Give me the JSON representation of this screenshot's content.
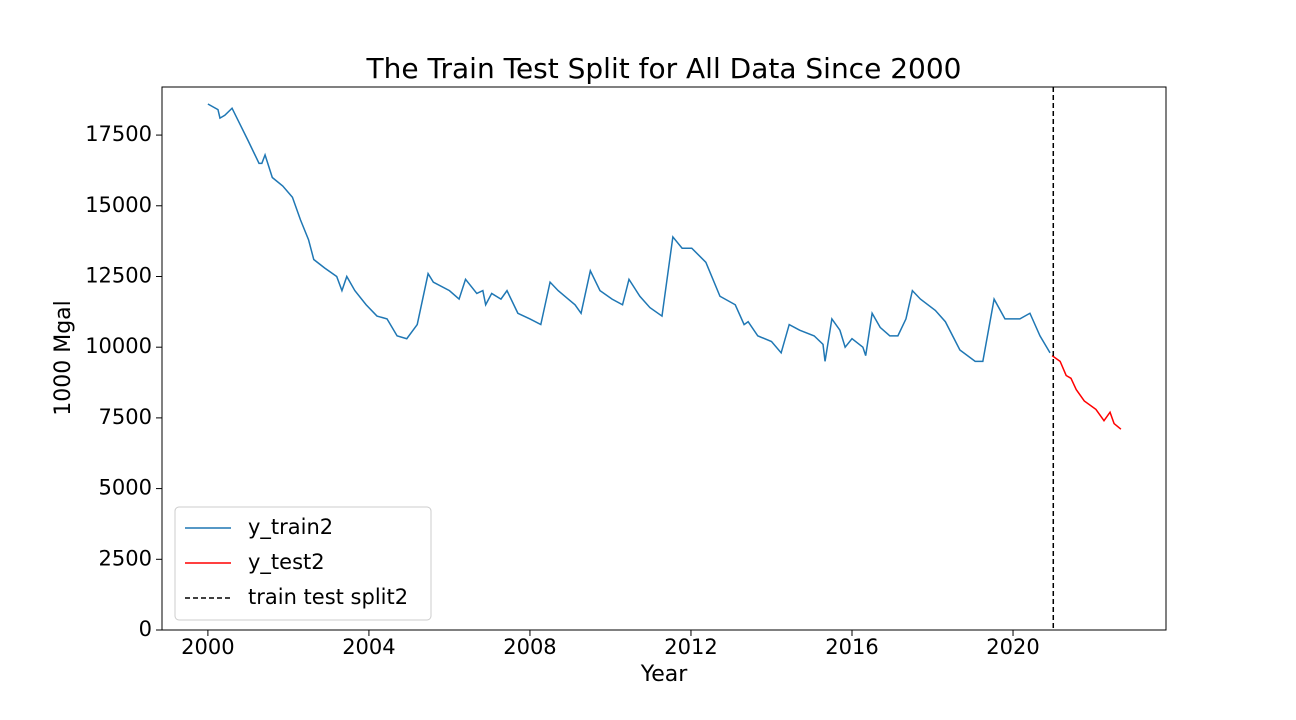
{
  "chart_data": {
    "type": "line",
    "title": "The Train Test Split for All Data Since 2000",
    "xlabel": "Year",
    "ylabel": "1000 Mgal",
    "xlim": [
      1998.86,
      2023.8
    ],
    "xticks": [
      2000,
      2004,
      2008,
      2012,
      2016,
      2020
    ],
    "ylim": [
      0,
      19200
    ],
    "yticks": [
      0,
      2500,
      5000,
      7500,
      10000,
      12500,
      15000,
      17500
    ],
    "legend": "lower left",
    "series": [
      {
        "name": "y_train2",
        "color": "#1f77b4",
        "x": [
          2000.0,
          2000.25,
          2000.3,
          2000.42,
          2000.6,
          2001.0,
          2001.27,
          2001.34,
          2001.42,
          2001.6,
          2001.86,
          2002.1,
          2002.3,
          2002.5,
          2002.63,
          2002.9,
          2003.2,
          2003.33,
          2003.45,
          2003.65,
          2003.93,
          2004.2,
          2004.45,
          2004.7,
          2004.94,
          2005.2,
          2005.47,
          2005.6,
          2006.0,
          2006.24,
          2006.4,
          2006.68,
          2006.83,
          2006.9,
          2007.05,
          2007.28,
          2007.43,
          2007.7,
          2008.0,
          2008.27,
          2008.5,
          2008.7,
          2008.95,
          2009.12,
          2009.27,
          2009.5,
          2009.74,
          2010.04,
          2010.3,
          2010.46,
          2010.73,
          2010.98,
          2011.28,
          2011.55,
          2011.78,
          2012.02,
          2012.37,
          2012.72,
          2013.1,
          2013.32,
          2013.42,
          2013.66,
          2014.0,
          2014.24,
          2014.44,
          2014.7,
          2015.06,
          2015.28,
          2015.33,
          2015.5,
          2015.7,
          2015.83,
          2016.0,
          2016.27,
          2016.34,
          2016.5,
          2016.7,
          2016.94,
          2017.14,
          2017.34,
          2017.5,
          2017.7,
          2018.07,
          2018.32,
          2018.68,
          2019.06,
          2019.25,
          2019.53,
          2019.8,
          2020.17,
          2020.42,
          2020.67,
          2020.92
        ],
        "values": [
          18600,
          18400,
          18100,
          18200,
          18450,
          17300,
          16500,
          16500,
          16800,
          16000,
          15700,
          15300,
          14500,
          13800,
          13100,
          12800,
          12500,
          12000,
          12500,
          12000,
          11500,
          11100,
          11000,
          10400,
          10300,
          10800,
          12600,
          12300,
          12000,
          11700,
          12400,
          11900,
          12000,
          11500,
          11900,
          11700,
          12000,
          11200,
          11000,
          10800,
          12300,
          12000,
          11700,
          11500,
          11200,
          12700,
          12000,
          11700,
          11500,
          12400,
          11800,
          11400,
          11100,
          13900,
          13500,
          13500,
          13000,
          11800,
          11500,
          10800,
          10900,
          10400,
          10200,
          9800,
          10800,
          10600,
          10400,
          10100,
          9500,
          11000,
          10600,
          10000,
          10300,
          10000,
          9700,
          11200,
          10700,
          10400,
          10400,
          11000,
          12000,
          11700,
          11300,
          10900,
          9900,
          9500,
          9500,
          11700,
          11000,
          11000,
          11200,
          10400,
          9800
        ]
      },
      {
        "name": "y_test2",
        "color": "red",
        "x": [
          2020.97,
          2021.17,
          2021.32,
          2021.44,
          2021.57,
          2021.77,
          2022.06,
          2022.26,
          2022.41,
          2022.51,
          2022.68
        ],
        "values": [
          9700,
          9500,
          9000,
          8900,
          8500,
          8100,
          7800,
          7400,
          7700,
          7300,
          7100
        ]
      }
    ],
    "vline": {
      "name": "train test split2",
      "x": 2021.0,
      "color": "black"
    }
  }
}
